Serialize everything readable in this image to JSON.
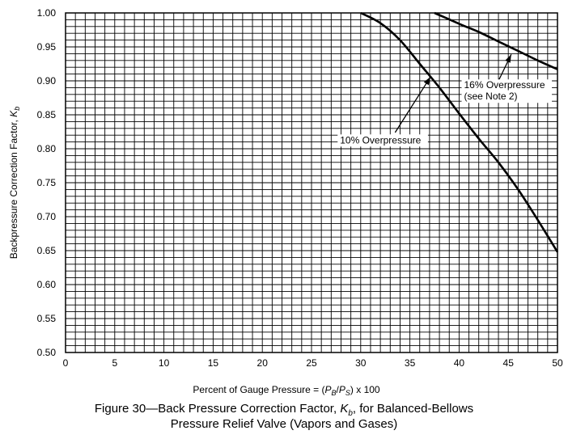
{
  "chart_data": {
    "type": "line",
    "xlabel": {
      "prefix": "Percent of Gauge Pressure = (",
      "p": "P",
      "p_sub": "B",
      "sep": "/",
      "q": "P",
      "q_sub": "S",
      "suffix": ") x 100"
    },
    "ylabel": {
      "text": "Backpressure Correction Factor, ",
      "k": "K",
      "k_sub": "b"
    },
    "xlim": [
      0,
      50
    ],
    "ylim": [
      0.5,
      1.0
    ],
    "x_ticks": [
      "0",
      "5",
      "10",
      "15",
      "20",
      "25",
      "30",
      "35",
      "40",
      "45",
      "50"
    ],
    "y_ticks": [
      "0.50",
      "0.55",
      "0.60",
      "0.65",
      "0.70",
      "0.75",
      "0.80",
      "0.85",
      "0.90",
      "0.95",
      "1.00"
    ],
    "grid": true,
    "grid_minor_step_x": 1,
    "grid_minor_step_y": 0.01,
    "series": [
      {
        "key": "ten",
        "points": [
          [
            30,
            1.0
          ],
          [
            32,
            0.985
          ],
          [
            34,
            0.96
          ],
          [
            36,
            0.925
          ],
          [
            38,
            0.89
          ],
          [
            40,
            0.852
          ],
          [
            42,
            0.815
          ],
          [
            44,
            0.78
          ],
          [
            46,
            0.74
          ],
          [
            48,
            0.695
          ],
          [
            50,
            0.648
          ]
        ]
      },
      {
        "key": "sixteen",
        "points": [
          [
            37.5,
            1.0
          ],
          [
            40,
            0.984
          ],
          [
            42,
            0.972
          ],
          [
            44,
            0.958
          ],
          [
            46,
            0.944
          ],
          [
            48,
            0.93
          ],
          [
            50,
            0.917
          ]
        ]
      }
    ],
    "annotations": [
      {
        "lines": [
          "10% Overpressure"
        ],
        "text_at": [
          27.9,
          0.808
        ],
        "arrow_from": [
          33.5,
          0.824
        ],
        "arrow_to": [
          37.1,
          0.906
        ]
      },
      {
        "lines": [
          "16% Overpressure",
          "(see Note 2)"
        ],
        "text_at": [
          40.5,
          0.889
        ],
        "arrow_from": [
          44.0,
          0.9
        ],
        "arrow_to": [
          45.3,
          0.939
        ]
      }
    ]
  },
  "caption": {
    "line1_prefix": "Figure  30—Back Pressure Correction Factor, ",
    "k": "K",
    "k_sub": "b",
    "line1_suffix": ", for Balanced-Bellows",
    "line2": "Pressure Relief Valve (Vapors and Gases)"
  }
}
